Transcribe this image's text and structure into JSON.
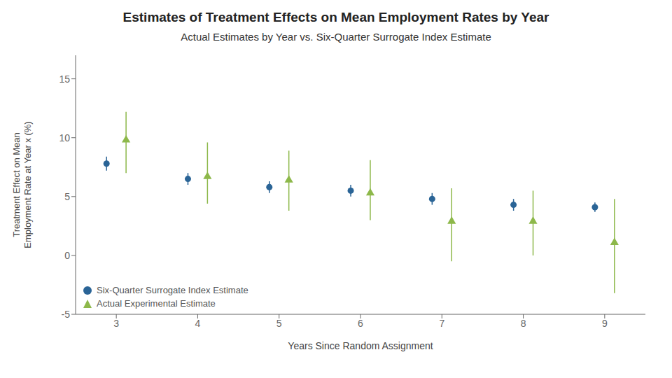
{
  "chart_data": {
    "type": "scatter",
    "title": "Estimates of Treatment Effects on Mean Employment Rates by Year",
    "subtitle": "Actual Estimates by Year vs. Six-Quarter Surrogate Index Estimate",
    "xlabel": "Years Since Random Assignment",
    "ylabel": "Treatment Effect on Mean\nEmployment Rate at Year x (%)",
    "x": [
      3,
      4,
      5,
      6,
      7,
      8,
      9
    ],
    "series": [
      {
        "name": "Six-Quarter Surrogate Index Estimate",
        "color": "#2a6496",
        "marker": "circle",
        "values": [
          7.8,
          6.5,
          5.8,
          5.5,
          4.8,
          4.3,
          4.1
        ],
        "ci_low": [
          7.2,
          6.0,
          5.3,
          5.0,
          4.3,
          3.8,
          3.7
        ],
        "ci_high": [
          8.4,
          7.0,
          6.3,
          6.0,
          5.3,
          4.8,
          4.5
        ]
      },
      {
        "name": "Actual Experimental Estimate",
        "color": "#8db84a",
        "marker": "triangle",
        "values": [
          9.8,
          6.7,
          6.4,
          5.3,
          2.9,
          2.9,
          1.1
        ],
        "ci_low": [
          7.0,
          4.4,
          3.8,
          3.0,
          -0.5,
          0.0,
          -3.2
        ],
        "ci_high": [
          12.2,
          9.6,
          8.9,
          8.1,
          5.7,
          5.5,
          4.8
        ]
      }
    ],
    "xlim": [
      2.5,
      9.5
    ],
    "xticks": [
      3,
      4,
      5,
      6,
      7,
      8,
      9
    ],
    "ylim": [
      -5,
      17
    ],
    "yticks": [
      -5,
      0,
      5,
      10,
      15
    ],
    "grid": false,
    "legend": "lower left"
  }
}
